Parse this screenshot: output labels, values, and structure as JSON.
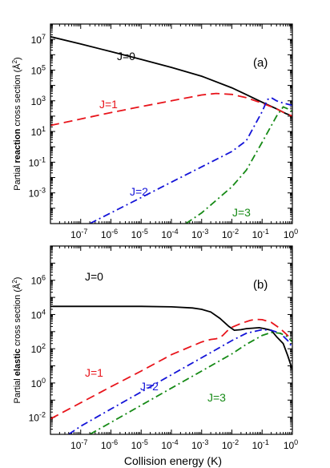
{
  "chart_data": [
    {
      "type": "line",
      "panel_label": "(a)",
      "ylabel_prefix": "Partial ",
      "ylabel_bold": "reaction",
      "ylabel_suffix": " cross section (Å",
      "ylabel_sup": "2",
      "ylabel_end": ")",
      "x_log": true,
      "y_log": true,
      "xlim": [
        1e-08,
        1
      ],
      "ylim": [
        1e-05,
        100000000.0
      ],
      "x_ticks": [
        "10-7",
        "10-6",
        "10-5",
        "10-4",
        "10-3",
        "10-2",
        "10-1",
        "100"
      ],
      "y_ticks": [
        "10-3",
        "10-1",
        "101",
        "103",
        "105",
        "107"
      ],
      "series": [
        {
          "name": "J=0",
          "color": "#000000",
          "dash": "solid",
          "x": [
            1e-08,
            1e-07,
            1e-06,
            1e-05,
            0.0001,
            0.001,
            0.01,
            0.03,
            0.1,
            0.3,
            0.6,
            1
          ],
          "y": [
            15000000,
            5000000,
            1600000,
            500000,
            150000,
            40000,
            7000,
            2500,
            800,
            300,
            150,
            100
          ]
        },
        {
          "name": "J=1",
          "color": "#e8141b",
          "dash": "long",
          "x": [
            1e-08,
            1e-07,
            1e-06,
            1e-05,
            0.0001,
            0.001,
            0.003,
            0.01,
            0.03,
            0.1,
            0.3,
            0.6,
            1
          ],
          "y": [
            25,
            65,
            170,
            420,
            1000,
            2400,
            3000,
            2600,
            1600,
            700,
            300,
            150,
            100
          ]
        },
        {
          "name": "J=2",
          "color": "#1414d8",
          "dash": "dashdot",
          "x": [
            2e-07,
            1e-06,
            1e-05,
            0.0001,
            0.001,
            0.01,
            0.03,
            0.1,
            0.15,
            0.2,
            0.3,
            0.5,
            0.7,
            1
          ],
          "y": [
            1e-05,
            5e-05,
            0.0005,
            0.005,
            0.05,
            0.5,
            2.5,
            200,
            1200,
            1600,
            1000,
            700,
            600,
            500
          ]
        },
        {
          "name": "J=3",
          "color": "#168a16",
          "dash": "dashdot",
          "x": [
            0.0003,
            0.001,
            0.01,
            0.03,
            0.1,
            0.3,
            0.5,
            0.7,
            1
          ],
          "y": [
            1e-05,
            5e-05,
            0.0025,
            0.03,
            2,
            100,
            400,
            300,
            200
          ]
        }
      ]
    },
    {
      "type": "line",
      "panel_label": "(b)",
      "xlabel": "Collision energy (K)",
      "ylabel_prefix": "Partial ",
      "ylabel_bold": "elastic",
      "ylabel_suffix": " cross section (Å",
      "ylabel_sup": "2",
      "ylabel_end": ")",
      "x_log": true,
      "y_log": true,
      "xlim": [
        1e-08,
        1
      ],
      "ylim": [
        0.001,
        100000000.0
      ],
      "x_ticks": [
        "10-7",
        "10-6",
        "10-5",
        "10-4",
        "10-3",
        "10-2",
        "10-1",
        "100"
      ],
      "y_ticks": [
        "10-2",
        "100",
        "102",
        "104",
        "106"
      ],
      "series": [
        {
          "name": "J=0",
          "color": "#000000",
          "dash": "solid",
          "x": [
            1e-08,
            1e-06,
            1e-05,
            0.0001,
            0.0005,
            0.001,
            0.002,
            0.004,
            0.008,
            0.012,
            0.02,
            0.03,
            0.05,
            0.08,
            0.12,
            0.2,
            0.3,
            0.5,
            0.7,
            1
          ],
          "y": [
            30000,
            30000,
            29800,
            28000,
            24000,
            20000,
            14000,
            6000,
            2000,
            1200,
            1300,
            1500,
            1600,
            1700,
            1500,
            1200,
            500,
            200,
            40,
            6
          ]
        },
        {
          "name": "J=1",
          "color": "#e8141b",
          "dash": "long",
          "x": [
            1e-08,
            1e-07,
            1e-06,
            1e-05,
            0.0001,
            0.001,
            0.002,
            0.003,
            0.004,
            0.005,
            0.007,
            0.01,
            0.02,
            0.04,
            0.06,
            0.1,
            0.2,
            0.4,
            0.7,
            1
          ],
          "y": [
            0.008,
            0.07,
            0.6,
            5,
            45,
            250,
            350,
            380,
            450,
            600,
            1100,
            1800,
            3000,
            4500,
            5200,
            5000,
            3500,
            1500,
            600,
            300
          ]
        },
        {
          "name": "J=2",
          "color": "#1414d8",
          "dash": "dashdot",
          "x": [
            4e-08,
            1e-07,
            1e-06,
            1e-05,
            0.0001,
            0.001,
            0.01,
            0.03,
            0.1,
            0.2,
            0.4,
            0.7,
            1
          ],
          "y": [
            0.001,
            0.003,
            0.03,
            0.3,
            3,
            30,
            300,
            800,
            1300,
            1200,
            800,
            300,
            120
          ]
        },
        {
          "name": "J=3",
          "color": "#168a16",
          "dash": "dashdot",
          "x": [
            2e-07,
            1e-06,
            1e-05,
            0.0001,
            0.001,
            0.01,
            0.03,
            0.1,
            0.2,
            0.4,
            0.7,
            1
          ],
          "y": [
            0.001,
            0.005,
            0.05,
            0.5,
            5,
            50,
            180,
            600,
            900,
            800,
            500,
            250
          ]
        }
      ]
    }
  ]
}
